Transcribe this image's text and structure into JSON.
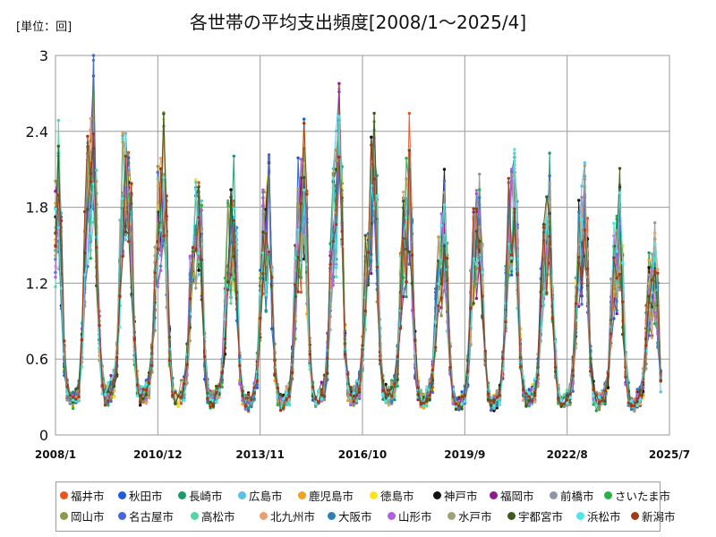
{
  "chart_data": {
    "type": "line",
    "title": "各世帯の平均支出頻度[2008/1～2025/4]",
    "unit_label": "[単位：回]",
    "y_ticks": [
      "0",
      "0.6",
      "1.2",
      "1.8",
      "2.4",
      "3"
    ],
    "ylim": [
      0,
      3
    ],
    "x_ticks": [
      "2008/1",
      "2010/12",
      "2013/11",
      "2016/10",
      "2019/9",
      "2022/8",
      "2025/7"
    ],
    "x_range": [
      "2008/1",
      "2025/7"
    ],
    "grid": true,
    "legend_position": "bottom",
    "seasonal_peak_summary": {
      "peak_years": [
        2008,
        2009,
        2010,
        2011,
        2012,
        2013,
        2014,
        2015,
        2016,
        2017,
        2018,
        2019,
        2020,
        2021,
        2022,
        2023,
        2024
      ],
      "peak_max_values": [
        2.3,
        2.88,
        2.66,
        2.43,
        2.3,
        2.05,
        2.1,
        2.38,
        2.58,
        2.62,
        2.35,
        1.9,
        2.08,
        2.35,
        2.08,
        2.1,
        1.97
      ]
    },
    "series": [
      {
        "name": "福井市",
        "color": "#e8541c"
      },
      {
        "name": "秋田市",
        "color": "#1f5bd6"
      },
      {
        "name": "長崎市",
        "color": "#179c6a"
      },
      {
        "name": "広島市",
        "color": "#5bbfe9"
      },
      {
        "name": "鹿児島市",
        "color": "#f0a21f"
      },
      {
        "name": "徳島市",
        "color": "#ffe21a"
      },
      {
        "name": "神戸市",
        "color": "#111111"
      },
      {
        "name": "福岡市",
        "color": "#8e1a8e"
      },
      {
        "name": "前橋市",
        "color": "#8f96a3"
      },
      {
        "name": "さいたま市",
        "color": "#27b14a"
      },
      {
        "name": "岡山市",
        "color": "#8b9a46"
      },
      {
        "name": "名古屋市",
        "color": "#4a63d8"
      },
      {
        "name": "高松市",
        "color": "#52d6a2"
      },
      {
        "name": "北九州市",
        "color": "#e8a070"
      },
      {
        "name": "大阪市",
        "color": "#2d7fb8"
      },
      {
        "name": "山形市",
        "color": "#b060e0"
      },
      {
        "name": "水戸市",
        "color": "#a0a07a"
      },
      {
        "name": "宇都宮市",
        "color": "#3a5a1e"
      },
      {
        "name": "浜松市",
        "color": "#4ee6e6"
      },
      {
        "name": "新潟市",
        "color": "#a33a16"
      }
    ]
  }
}
